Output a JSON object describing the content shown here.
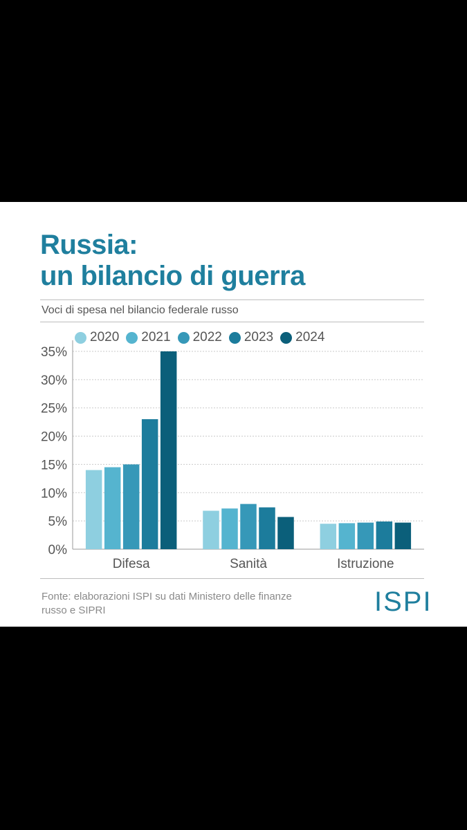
{
  "title_lines": [
    "Russia:",
    "un bilancio di guerra"
  ],
  "subtitle": "Voci di spesa nel bilancio federale russo",
  "source_lines": [
    "Fonte: elaborazioni ISPI su dati Ministero delle finanze",
    "russo e SIPRI"
  ],
  "logo": "ISPI",
  "colors": {
    "title": "#1f7f9e",
    "text": "#555555",
    "grid": "#c9c9c9"
  },
  "chart_data": {
    "type": "bar",
    "title": "Russia: un bilancio di guerra",
    "subtitle": "Voci di spesa nel bilancio federale russo",
    "categories": [
      "Difesa",
      "Sanità",
      "Istruzione"
    ],
    "series": [
      {
        "name": "2020",
        "color": "#8ecfe0",
        "values": [
          14,
          6.8,
          4.5
        ]
      },
      {
        "name": "2021",
        "color": "#55b4cf",
        "values": [
          14.5,
          7.2,
          4.6
        ]
      },
      {
        "name": "2022",
        "color": "#3698b8",
        "values": [
          15,
          8,
          4.7
        ]
      },
      {
        "name": "2023",
        "color": "#1c7c9c",
        "values": [
          23,
          7.4,
          4.9
        ]
      },
      {
        "name": "2024",
        "color": "#0b5f7a",
        "values": [
          35,
          5.7,
          4.7
        ]
      }
    ],
    "yticks": [
      "0%",
      "5%",
      "10%",
      "15%",
      "20%",
      "25%",
      "30%",
      "35%"
    ],
    "ylim": [
      0,
      35
    ],
    "grid": true,
    "legend_position": "top"
  }
}
